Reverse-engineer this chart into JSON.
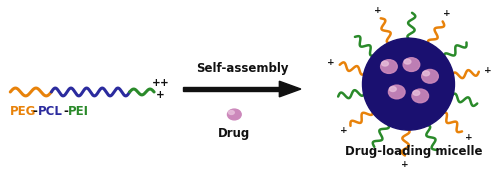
{
  "bg_color": "#ffffff",
  "peg_color": "#e8820a",
  "pcl_color": "#2b2b9e",
  "pei_color": "#2a8a2a",
  "micelle_core_color": "#1a1070",
  "drug_color": "#cc88bb",
  "drug_highlight": "#e8c0dc",
  "orange_chain_color": "#e8820a",
  "green_chain_color": "#2a8a2a",
  "plus_color": "#111111",
  "arrow_color": "#111111",
  "label_color": "#111111",
  "self_assembly": "Self-assembly",
  "drug_label": "Drug",
  "micelle_label": "Drug-loading micelle",
  "peg_label": "PEG",
  "pcl_label": "PCL",
  "pei_label": "PEI"
}
